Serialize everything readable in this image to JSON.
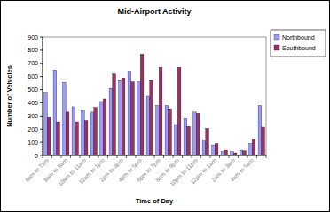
{
  "chart_data": {
    "type": "bar",
    "title": "Mid-Airport Activity",
    "x_label": "Time of Day",
    "y_label": "Number of Vehicles",
    "categories": [
      "6am to 7am",
      null,
      "8am to 9am",
      null,
      "10am to 11am",
      null,
      "12am to 1pm",
      null,
      "2pm to 3pm",
      null,
      "4pm to 5pm",
      null,
      "6pm to 7pm",
      null,
      "8pm to 9pm",
      null,
      "10pm to 11pm",
      null,
      "12pm to 1am",
      null,
      "2am to 3am",
      null,
      "4am to 5am",
      null
    ],
    "series": [
      {
        "name": "Northbound",
        "color": "#9999ff",
        "values": [
          480,
          650,
          555,
          370,
          340,
          330,
          410,
          510,
          570,
          640,
          560,
          450,
          380,
          380,
          235,
          280,
          330,
          120,
          80,
          30,
          30,
          40,
          90,
          380
        ]
      },
      {
        "name": "Southbound",
        "color": "#993366",
        "values": [
          290,
          255,
          330,
          255,
          265,
          365,
          430,
          620,
          590,
          560,
          770,
          570,
          670,
          355,
          670,
          220,
          320,
          205,
          90,
          40,
          20,
          35,
          125,
          215
        ]
      }
    ],
    "ylim": [
      0,
      900
    ],
    "yticks": [
      0,
      100,
      200,
      300,
      400,
      500,
      600,
      700,
      800,
      900
    ],
    "grid": false,
    "legend": "right"
  }
}
